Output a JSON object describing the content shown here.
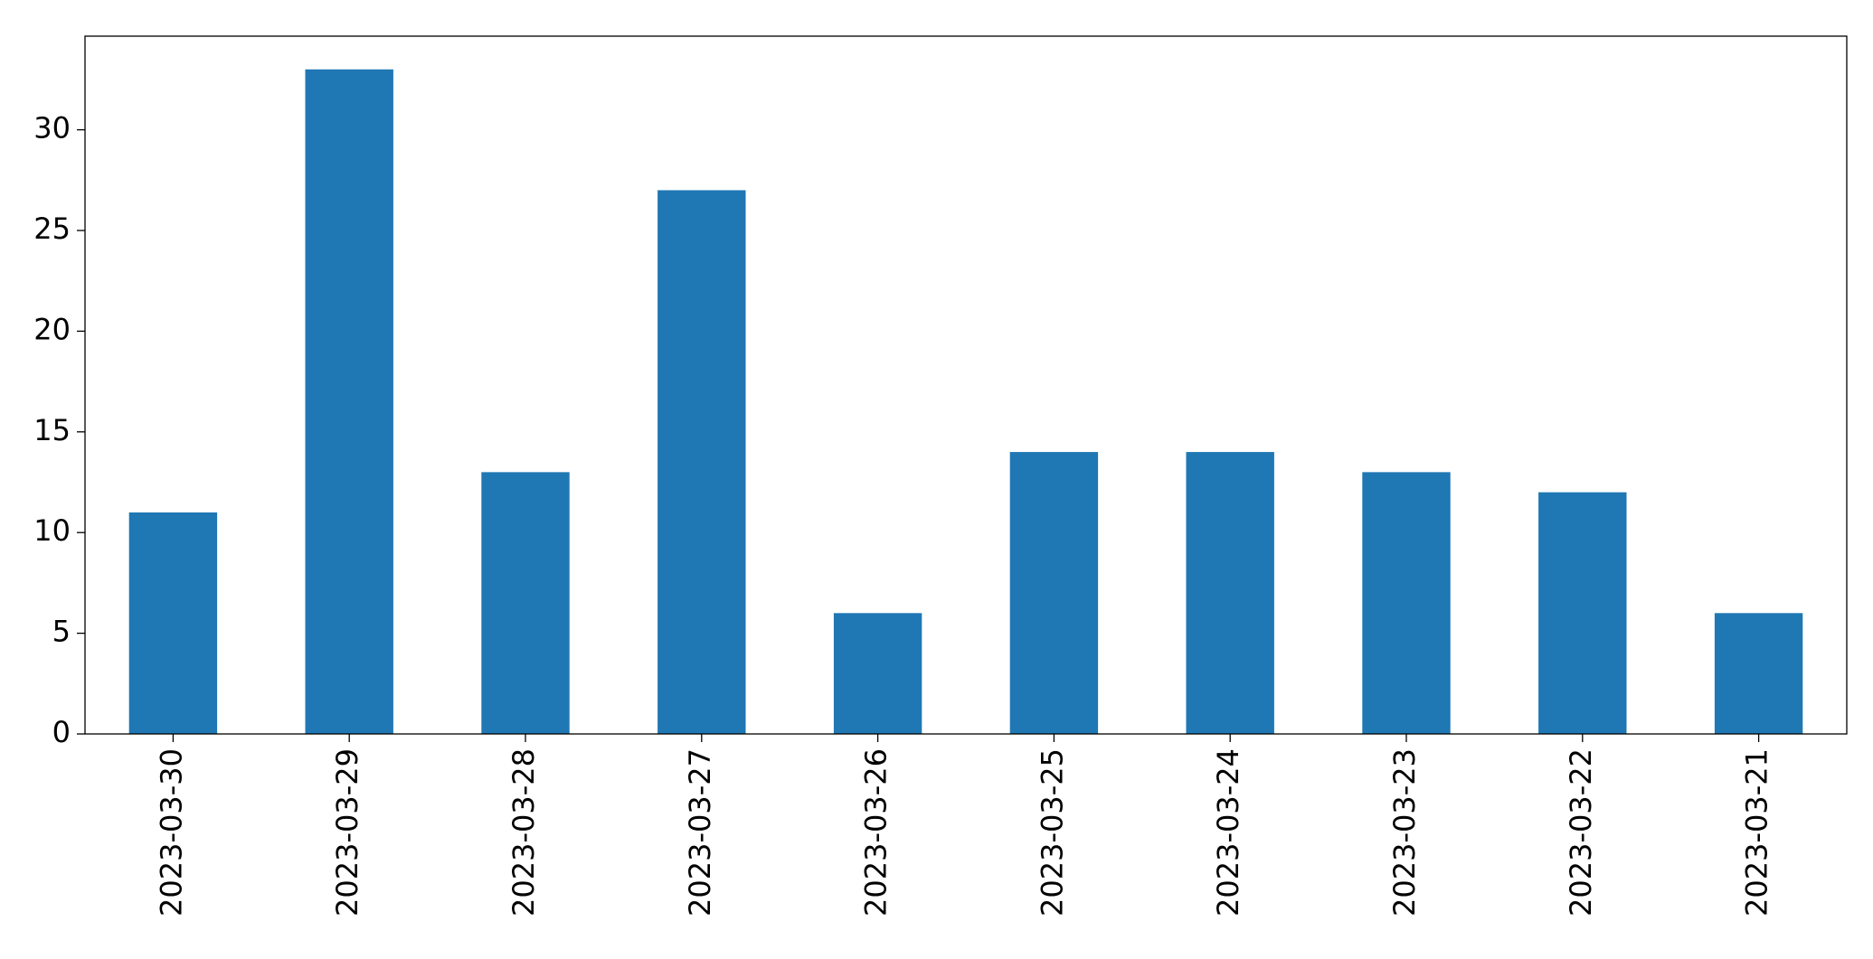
{
  "chart_data": {
    "type": "bar",
    "categories": [
      "2023-03-30",
      "2023-03-29",
      "2023-03-28",
      "2023-03-27",
      "2023-03-26",
      "2023-03-25",
      "2023-03-24",
      "2023-03-23",
      "2023-03-22",
      "2023-03-21"
    ],
    "values": [
      11,
      33,
      13,
      27,
      6,
      14,
      14,
      13,
      12,
      6
    ],
    "color": "#1f77b4",
    "ylim": [
      0,
      34.65
    ],
    "yticks": [
      0,
      5,
      10,
      15,
      20,
      25,
      30
    ],
    "grid": false
  }
}
